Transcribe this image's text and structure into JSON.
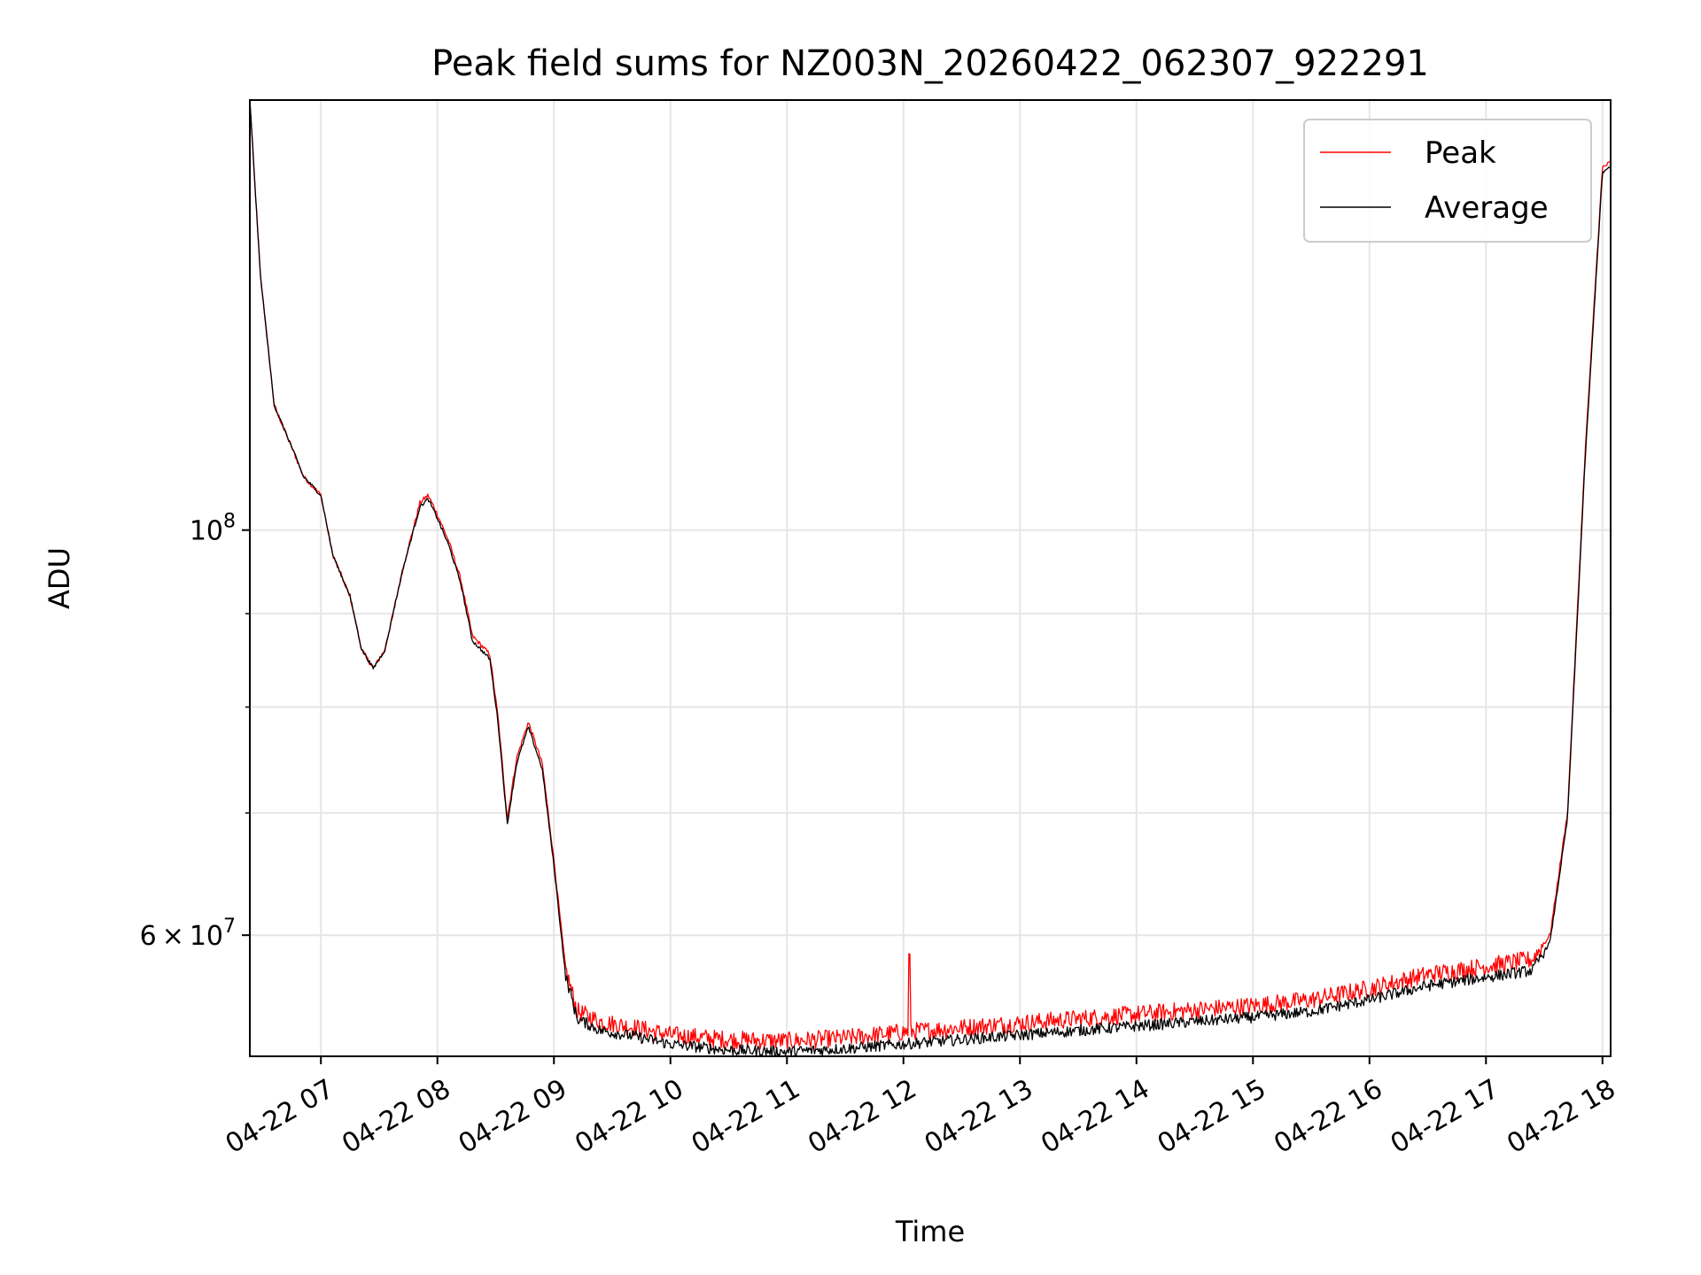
{
  "chart_data": {
    "type": "line",
    "title": "Peak field sums for NZ003N_20260422_062307_922291",
    "xlabel": "Time",
    "ylabel": "ADU",
    "y_scale": "log",
    "xlim_hours": [
      6.39,
      18.07
    ],
    "ylim": [
      51500000,
      172000000
    ],
    "grid": true,
    "legend_position": "top-right",
    "x_ticks": [
      {
        "value": 7,
        "label": "04-22 07"
      },
      {
        "value": 8,
        "label": "04-22 08"
      },
      {
        "value": 9,
        "label": "04-22 09"
      },
      {
        "value": 10,
        "label": "04-22 10"
      },
      {
        "value": 11,
        "label": "04-22 11"
      },
      {
        "value": 12,
        "label": "04-22 12"
      },
      {
        "value": 13,
        "label": "04-22 13"
      },
      {
        "value": 14,
        "label": "04-22 14"
      },
      {
        "value": 15,
        "label": "04-22 15"
      },
      {
        "value": 16,
        "label": "04-22 16"
      },
      {
        "value": 17,
        "label": "04-22 17"
      },
      {
        "value": 18,
        "label": "04-22 18"
      }
    ],
    "y_major_ticks": [
      {
        "value": 100000000,
        "base": "10",
        "exp": "8"
      },
      {
        "value": 60000000,
        "mant": "6",
        "times": "×",
        "base": "10",
        "exp": "7"
      }
    ],
    "y_minor_ticks": [
      70000000,
      80000000,
      90000000
    ],
    "series": [
      {
        "name": "Peak",
        "color": "#ff0000",
        "noise": 0.008,
        "points": [
          [
            6.39,
            172000000
          ],
          [
            6.48,
            138000000
          ],
          [
            6.6,
            117000000
          ],
          [
            6.75,
            111000000
          ],
          [
            6.85,
            107000000
          ],
          [
            7.0,
            104500000
          ],
          [
            7.1,
            97000000
          ],
          [
            7.25,
            92000000
          ],
          [
            7.35,
            86000000
          ],
          [
            7.45,
            84000000
          ],
          [
            7.55,
            86000000
          ],
          [
            7.7,
            95000000
          ],
          [
            7.85,
            103500000
          ],
          [
            7.92,
            104500000
          ],
          [
            8.0,
            102000000
          ],
          [
            8.1,
            98500000
          ],
          [
            8.2,
            94000000
          ],
          [
            8.3,
            87500000
          ],
          [
            8.45,
            85500000
          ],
          [
            8.52,
            79000000
          ],
          [
            8.6,
            69500000
          ],
          [
            8.68,
            75000000
          ],
          [
            8.78,
            78500000
          ],
          [
            8.9,
            74500000
          ],
          [
            9.0,
            66000000
          ],
          [
            9.1,
            57500000
          ],
          [
            9.2,
            54500000
          ],
          [
            9.4,
            53800000
          ],
          [
            9.7,
            53400000
          ],
          [
            10.0,
            52900000
          ],
          [
            10.5,
            52600000
          ],
          [
            11.0,
            52500000
          ],
          [
            11.5,
            52700000
          ],
          [
            12.0,
            53100000
          ],
          [
            12.5,
            53400000
          ],
          [
            13.0,
            53700000
          ],
          [
            13.5,
            54000000
          ],
          [
            14.0,
            54300000
          ],
          [
            14.5,
            54600000
          ],
          [
            15.0,
            54900000
          ],
          [
            15.5,
            55300000
          ],
          [
            16.0,
            56100000
          ],
          [
            16.5,
            57100000
          ],
          [
            17.0,
            57700000
          ],
          [
            17.4,
            58200000
          ],
          [
            17.55,
            60000000
          ],
          [
            17.7,
            70000000
          ],
          [
            17.85,
            110000000
          ],
          [
            18.0,
            158000000
          ],
          [
            18.07,
            159000000
          ]
        ]
      },
      {
        "name": "Average",
        "color": "#000000",
        "noise": 0.006,
        "points": [
          [
            6.39,
            172000000
          ],
          [
            6.48,
            138000000
          ],
          [
            6.6,
            117000000
          ],
          [
            6.75,
            111000000
          ],
          [
            6.85,
            107000000
          ],
          [
            7.0,
            104500000
          ],
          [
            7.1,
            97000000
          ],
          [
            7.25,
            92000000
          ],
          [
            7.35,
            86000000
          ],
          [
            7.45,
            84000000
          ],
          [
            7.55,
            86000000
          ],
          [
            7.7,
            95000000
          ],
          [
            7.85,
            103000000
          ],
          [
            7.92,
            104000000
          ],
          [
            8.0,
            101500000
          ],
          [
            8.1,
            98000000
          ],
          [
            8.2,
            93500000
          ],
          [
            8.3,
            87000000
          ],
          [
            8.45,
            85000000
          ],
          [
            8.52,
            78500000
          ],
          [
            8.6,
            69000000
          ],
          [
            8.68,
            74500000
          ],
          [
            8.78,
            78000000
          ],
          [
            8.9,
            74000000
          ],
          [
            9.0,
            65500000
          ],
          [
            9.1,
            57000000
          ],
          [
            9.2,
            54000000
          ],
          [
            9.4,
            53200000
          ],
          [
            9.7,
            52800000
          ],
          [
            10.0,
            52300000
          ],
          [
            10.5,
            51900000
          ],
          [
            11.0,
            51800000
          ],
          [
            11.5,
            52000000
          ],
          [
            12.0,
            52300000
          ],
          [
            12.5,
            52600000
          ],
          [
            13.0,
            52900000
          ],
          [
            13.5,
            53200000
          ],
          [
            14.0,
            53500000
          ],
          [
            14.5,
            53800000
          ],
          [
            15.0,
            54100000
          ],
          [
            15.5,
            54500000
          ],
          [
            16.0,
            55300000
          ],
          [
            16.5,
            56300000
          ],
          [
            17.0,
            56900000
          ],
          [
            17.4,
            57400000
          ],
          [
            17.55,
            59500000
          ],
          [
            17.7,
            69500000
          ],
          [
            17.85,
            109000000
          ],
          [
            18.0,
            157000000
          ],
          [
            18.07,
            158000000
          ]
        ]
      }
    ],
    "spike": {
      "series": "Peak",
      "x": 12.05,
      "value": 58600000
    }
  }
}
